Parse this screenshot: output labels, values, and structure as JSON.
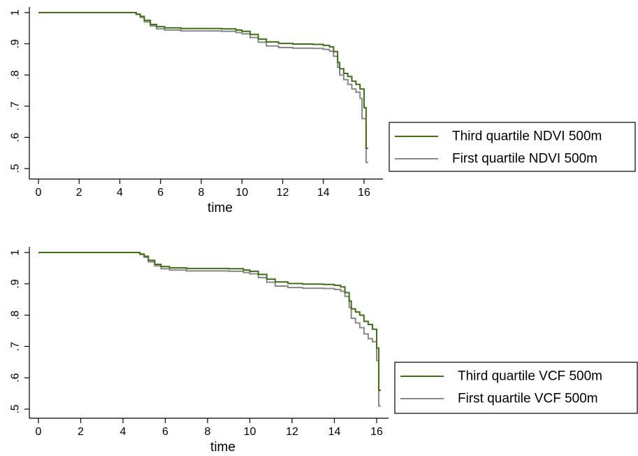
{
  "chart_data": [
    {
      "type": "line",
      "xlabel": "time",
      "ylabel": "",
      "xlim": [
        0,
        16.5
      ],
      "ylim": [
        0.5,
        1.0
      ],
      "xticks": [
        0,
        2,
        4,
        6,
        8,
        10,
        12,
        14,
        16
      ],
      "xtick_labels": [
        "0",
        "2",
        "4",
        "6",
        "8",
        "10",
        "12",
        "14",
        "16"
      ],
      "yticks": [
        0.5,
        0.6,
        0.7,
        0.8,
        0.9,
        1.0
      ],
      "ytick_labels": [
        ".5",
        ".6",
        ".7",
        ".8",
        ".9",
        "1"
      ],
      "grid": false,
      "legend_position": "right",
      "series": [
        {
          "name": "Third quartile NDVI 500m",
          "color": "#3f6f16",
          "x": [
            0,
            4.5,
            4.8,
            5.0,
            5.2,
            5.5,
            5.8,
            6.2,
            7.0,
            8.0,
            9.0,
            9.7,
            10.0,
            10.4,
            10.8,
            11.2,
            11.8,
            12.5,
            13.5,
            14.0,
            14.3,
            14.5,
            14.7,
            14.8,
            15.0,
            15.2,
            15.4,
            15.6,
            15.8,
            15.9,
            16.0,
            16.1,
            16.2
          ],
          "y": [
            1.0,
            1.0,
            0.995,
            0.988,
            0.975,
            0.962,
            0.955,
            0.951,
            0.949,
            0.949,
            0.948,
            0.944,
            0.94,
            0.93,
            0.915,
            0.906,
            0.901,
            0.899,
            0.898,
            0.895,
            0.89,
            0.875,
            0.84,
            0.82,
            0.805,
            0.795,
            0.78,
            0.77,
            0.755,
            0.755,
            0.695,
            0.565,
            0.565
          ]
        },
        {
          "name": "First quartile NDVI 500m",
          "color": "#888888",
          "x": [
            0,
            4.5,
            4.8,
            5.0,
            5.2,
            5.5,
            5.8,
            6.2,
            7.0,
            8.0,
            9.0,
            9.7,
            10.0,
            10.4,
            10.8,
            11.2,
            11.8,
            12.5,
            13.5,
            14.0,
            14.3,
            14.5,
            14.7,
            14.8,
            15.0,
            15.2,
            15.4,
            15.6,
            15.8,
            15.9,
            16.0,
            16.1,
            16.2
          ],
          "y": [
            1.0,
            1.0,
            0.994,
            0.985,
            0.97,
            0.957,
            0.948,
            0.944,
            0.941,
            0.941,
            0.94,
            0.936,
            0.932,
            0.92,
            0.905,
            0.893,
            0.888,
            0.886,
            0.885,
            0.882,
            0.876,
            0.86,
            0.825,
            0.8,
            0.785,
            0.77,
            0.755,
            0.745,
            0.725,
            0.66,
            0.66,
            0.52,
            0.52
          ]
        }
      ]
    },
    {
      "type": "line",
      "xlabel": "time",
      "ylabel": "",
      "xlim": [
        0,
        16.5
      ],
      "ylim": [
        0.5,
        1.0
      ],
      "xticks": [
        0,
        2,
        4,
        6,
        8,
        10,
        12,
        14,
        16
      ],
      "xtick_labels": [
        "0",
        "2",
        "4",
        "6",
        "8",
        "10",
        "12",
        "14",
        "16"
      ],
      "yticks": [
        0.5,
        0.6,
        0.7,
        0.8,
        0.9,
        1.0
      ],
      "ytick_labels": [
        ".5",
        ".6",
        ".7",
        ".8",
        ".9",
        "1"
      ],
      "grid": false,
      "legend_position": "right",
      "series": [
        {
          "name": "Third quartile VCF 500m",
          "color": "#3f6f16",
          "x": [
            0,
            4.5,
            4.8,
            5.0,
            5.2,
            5.5,
            5.8,
            6.2,
            7.0,
            8.0,
            9.0,
            9.7,
            10.0,
            10.4,
            10.8,
            11.2,
            11.8,
            12.5,
            13.5,
            14.0,
            14.3,
            14.5,
            14.7,
            14.8,
            15.0,
            15.2,
            15.4,
            15.6,
            15.8,
            15.9,
            16.0,
            16.1,
            16.2
          ],
          "y": [
            1.0,
            1.0,
            0.995,
            0.988,
            0.975,
            0.962,
            0.955,
            0.951,
            0.949,
            0.949,
            0.948,
            0.944,
            0.94,
            0.93,
            0.915,
            0.906,
            0.901,
            0.899,
            0.898,
            0.895,
            0.89,
            0.872,
            0.845,
            0.82,
            0.81,
            0.8,
            0.78,
            0.77,
            0.755,
            0.755,
            0.695,
            0.56,
            0.56
          ]
        },
        {
          "name": "First quartile VCF 500m",
          "color": "#888888",
          "x": [
            0,
            4.5,
            4.8,
            5.0,
            5.2,
            5.5,
            5.8,
            6.2,
            7.0,
            8.0,
            9.0,
            9.7,
            10.0,
            10.4,
            10.8,
            11.2,
            11.8,
            12.5,
            13.5,
            14.0,
            14.3,
            14.5,
            14.7,
            14.8,
            15.0,
            15.2,
            15.4,
            15.6,
            15.8,
            15.9,
            16.0,
            16.1,
            16.2
          ],
          "y": [
            1.0,
            1.0,
            0.994,
            0.985,
            0.97,
            0.957,
            0.948,
            0.944,
            0.941,
            0.941,
            0.94,
            0.936,
            0.932,
            0.92,
            0.905,
            0.893,
            0.888,
            0.886,
            0.885,
            0.882,
            0.876,
            0.86,
            0.825,
            0.79,
            0.775,
            0.76,
            0.74,
            0.725,
            0.715,
            0.715,
            0.655,
            0.51,
            0.51
          ]
        }
      ]
    }
  ]
}
